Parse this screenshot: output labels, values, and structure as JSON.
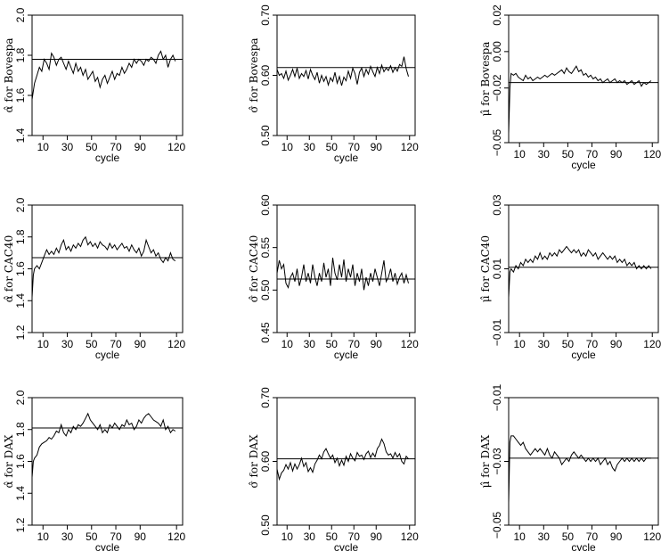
{
  "chart_data": [
    {
      "type": "line",
      "ylabel": "α̂ for Bovespa",
      "xlabel": "cycle",
      "xlim": [
        1,
        125
      ],
      "ylim": [
        1.4,
        2.0
      ],
      "xticks": [
        "10",
        "30",
        "50",
        "70",
        "90",
        "120"
      ],
      "yticks": [
        "1.4",
        "1.6",
        "1.8",
        "2.0"
      ],
      "hline": 1.78,
      "x": [
        1,
        3,
        5,
        7,
        9,
        11,
        13,
        15,
        17,
        19,
        21,
        23,
        25,
        27,
        29,
        31,
        33,
        35,
        37,
        39,
        41,
        43,
        45,
        47,
        49,
        51,
        53,
        55,
        57,
        59,
        61,
        63,
        65,
        67,
        69,
        71,
        73,
        75,
        77,
        79,
        81,
        83,
        85,
        87,
        89,
        91,
        93,
        95,
        97,
        99,
        101,
        103,
        105,
        107,
        109,
        111,
        113,
        115,
        117,
        119
      ],
      "values": [
        1.58,
        1.66,
        1.7,
        1.74,
        1.72,
        1.78,
        1.76,
        1.73,
        1.81,
        1.79,
        1.75,
        1.78,
        1.79,
        1.76,
        1.73,
        1.77,
        1.74,
        1.71,
        1.76,
        1.72,
        1.74,
        1.7,
        1.73,
        1.68,
        1.7,
        1.72,
        1.67,
        1.69,
        1.64,
        1.68,
        1.7,
        1.66,
        1.69,
        1.72,
        1.68,
        1.71,
        1.7,
        1.74,
        1.71,
        1.73,
        1.76,
        1.74,
        1.78,
        1.76,
        1.78,
        1.77,
        1.75,
        1.78,
        1.77,
        1.79,
        1.78,
        1.76,
        1.8,
        1.82,
        1.78,
        1.8,
        1.74,
        1.78,
        1.8,
        1.77
      ]
    },
    {
      "type": "line",
      "ylabel": "σ̂ for Bovespa",
      "xlabel": "cycle",
      "xlim": [
        1,
        125
      ],
      "ylim": [
        0.5,
        0.7
      ],
      "xticks": [
        "10",
        "30",
        "50",
        "70",
        "90",
        "120"
      ],
      "yticks": [
        "0.50",
        "0.60",
        "0.70"
      ],
      "hline": 0.613,
      "x": [
        1,
        3,
        5,
        7,
        9,
        11,
        13,
        15,
        17,
        19,
        21,
        23,
        25,
        27,
        29,
        31,
        33,
        35,
        37,
        39,
        41,
        43,
        45,
        47,
        49,
        51,
        53,
        55,
        57,
        59,
        61,
        63,
        65,
        67,
        69,
        71,
        73,
        75,
        77,
        79,
        81,
        83,
        85,
        87,
        89,
        91,
        93,
        95,
        97,
        99,
        101,
        103,
        105,
        107,
        109,
        111,
        113,
        115,
        117,
        119
      ],
      "values": [
        0.61,
        0.6,
        0.603,
        0.595,
        0.607,
        0.592,
        0.6,
        0.61,
        0.598,
        0.612,
        0.595,
        0.603,
        0.598,
        0.608,
        0.594,
        0.61,
        0.6,
        0.593,
        0.605,
        0.587,
        0.6,
        0.59,
        0.598,
        0.584,
        0.596,
        0.59,
        0.605,
        0.587,
        0.598,
        0.583,
        0.597,
        0.591,
        0.607,
        0.595,
        0.612,
        0.603,
        0.585,
        0.605,
        0.612,
        0.598,
        0.61,
        0.602,
        0.615,
        0.606,
        0.598,
        0.613,
        0.603,
        0.617,
        0.606,
        0.612,
        0.608,
        0.616,
        0.605,
        0.613,
        0.607,
        0.618,
        0.615,
        0.631,
        0.611,
        0.598
      ]
    },
    {
      "type": "line",
      "ylabel": "μ̂ for Bovespa",
      "xlabel": "cycle",
      "xlim": [
        1,
        125
      ],
      "ylim": [
        -0.05,
        0.02
      ],
      "xticks": [
        "10",
        "30",
        "50",
        "70",
        "90",
        "120"
      ],
      "yticks": [
        "−0.05",
        "−0.02",
        "0.00",
        "0.02"
      ],
      "hline": -0.017,
      "x": [
        1,
        2,
        3,
        5,
        7,
        9,
        11,
        13,
        15,
        17,
        19,
        21,
        23,
        25,
        27,
        29,
        31,
        33,
        35,
        37,
        39,
        41,
        43,
        45,
        47,
        49,
        51,
        53,
        55,
        57,
        59,
        61,
        63,
        65,
        67,
        69,
        71,
        73,
        75,
        77,
        79,
        81,
        83,
        85,
        87,
        89,
        91,
        93,
        95,
        97,
        99,
        101,
        103,
        105,
        107,
        109,
        111,
        113,
        115,
        117,
        119
      ],
      "values": [
        -0.045,
        -0.02,
        -0.012,
        -0.013,
        -0.012,
        -0.014,
        -0.015,
        -0.016,
        -0.013,
        -0.015,
        -0.014,
        -0.016,
        -0.015,
        -0.014,
        -0.015,
        -0.014,
        -0.013,
        -0.014,
        -0.013,
        -0.012,
        -0.013,
        -0.012,
        -0.011,
        -0.01,
        -0.012,
        -0.009,
        -0.011,
        -0.012,
        -0.01,
        -0.008,
        -0.011,
        -0.01,
        -0.013,
        -0.012,
        -0.014,
        -0.013,
        -0.015,
        -0.014,
        -0.016,
        -0.015,
        -0.017,
        -0.016,
        -0.015,
        -0.017,
        -0.016,
        -0.015,
        -0.017,
        -0.016,
        -0.017,
        -0.016,
        -0.018,
        -0.017,
        -0.016,
        -0.018,
        -0.017,
        -0.016,
        -0.019,
        -0.017,
        -0.018,
        -0.017,
        -0.016
      ]
    },
    {
      "type": "line",
      "ylabel": "α̂ for CAC40",
      "xlabel": "cycle",
      "xlim": [
        1,
        125
      ],
      "ylim": [
        1.2,
        2.0
      ],
      "xticks": [
        "10",
        "30",
        "50",
        "70",
        "90",
        "120"
      ],
      "yticks": [
        "1.2",
        "1.4",
        "1.6",
        "1.8",
        "2.0"
      ],
      "hline": 1.67,
      "x": [
        1,
        2,
        3,
        5,
        7,
        9,
        11,
        13,
        15,
        17,
        19,
        21,
        23,
        25,
        27,
        29,
        31,
        33,
        35,
        37,
        39,
        41,
        43,
        45,
        47,
        49,
        51,
        53,
        55,
        57,
        59,
        61,
        63,
        65,
        67,
        69,
        71,
        73,
        75,
        77,
        79,
        81,
        83,
        85,
        87,
        89,
        91,
        93,
        95,
        97,
        99,
        101,
        103,
        105,
        107,
        109,
        111,
        113,
        115,
        117,
        119
      ],
      "values": [
        1.42,
        1.56,
        1.6,
        1.62,
        1.6,
        1.64,
        1.68,
        1.72,
        1.69,
        1.71,
        1.69,
        1.73,
        1.7,
        1.75,
        1.78,
        1.72,
        1.74,
        1.71,
        1.75,
        1.73,
        1.76,
        1.74,
        1.78,
        1.8,
        1.75,
        1.77,
        1.74,
        1.76,
        1.73,
        1.77,
        1.75,
        1.74,
        1.72,
        1.76,
        1.73,
        1.75,
        1.72,
        1.74,
        1.76,
        1.73,
        1.74,
        1.71,
        1.75,
        1.72,
        1.7,
        1.73,
        1.68,
        1.71,
        1.78,
        1.74,
        1.7,
        1.72,
        1.68,
        1.7,
        1.66,
        1.64,
        1.67,
        1.65,
        1.7,
        1.66,
        1.65
      ]
    },
    {
      "type": "line",
      "ylabel": "σ̂ for CAC40",
      "xlabel": "cycle",
      "xlim": [
        1,
        125
      ],
      "ylim": [
        0.45,
        0.6
      ],
      "xticks": [
        "10",
        "30",
        "50",
        "70",
        "90",
        "120"
      ],
      "yticks": [
        "0.45",
        "0.50",
        "0.55",
        "0.60"
      ],
      "hline": 0.513,
      "x": [
        1,
        3,
        5,
        7,
        9,
        11,
        13,
        15,
        17,
        19,
        21,
        23,
        25,
        27,
        29,
        31,
        33,
        35,
        37,
        39,
        41,
        43,
        45,
        47,
        49,
        51,
        53,
        55,
        57,
        59,
        61,
        63,
        65,
        67,
        69,
        71,
        73,
        75,
        77,
        79,
        81,
        83,
        85,
        87,
        89,
        91,
        93,
        95,
        97,
        99,
        101,
        103,
        105,
        107,
        109,
        111,
        113,
        115,
        117,
        119
      ],
      "values": [
        0.52,
        0.535,
        0.525,
        0.53,
        0.508,
        0.503,
        0.515,
        0.52,
        0.51,
        0.525,
        0.505,
        0.515,
        0.53,
        0.51,
        0.52,
        0.508,
        0.53,
        0.515,
        0.505,
        0.52,
        0.51,
        0.532,
        0.515,
        0.525,
        0.505,
        0.538,
        0.52,
        0.512,
        0.53,
        0.515,
        0.536,
        0.51,
        0.525,
        0.515,
        0.53,
        0.505,
        0.52,
        0.51,
        0.525,
        0.5,
        0.515,
        0.505,
        0.52,
        0.51,
        0.525,
        0.515,
        0.505,
        0.52,
        0.535,
        0.51,
        0.515,
        0.525,
        0.51,
        0.52,
        0.507,
        0.515,
        0.52,
        0.508,
        0.518,
        0.508
      ]
    },
    {
      "type": "line",
      "ylabel": "μ̂ for CAC40",
      "xlabel": "cycle",
      "xlim": [
        1,
        125
      ],
      "ylim": [
        -0.01,
        0.03
      ],
      "xticks": [
        "10",
        "30",
        "50",
        "70",
        "90",
        "120"
      ],
      "yticks": [
        "−0.01",
        "0.01",
        "0.03"
      ],
      "hline": 0.0105,
      "x": [
        1,
        2,
        3,
        5,
        7,
        9,
        11,
        13,
        15,
        17,
        19,
        21,
        23,
        25,
        27,
        29,
        31,
        33,
        35,
        37,
        39,
        41,
        43,
        45,
        47,
        49,
        51,
        53,
        55,
        57,
        59,
        61,
        63,
        65,
        67,
        69,
        71,
        73,
        75,
        77,
        79,
        81,
        83,
        85,
        87,
        89,
        91,
        93,
        95,
        97,
        99,
        101,
        103,
        105,
        107,
        109,
        111,
        113,
        115,
        117,
        119
      ],
      "values": [
        0.001,
        0.009,
        0.01,
        0.009,
        0.011,
        0.01,
        0.012,
        0.011,
        0.013,
        0.012,
        0.013,
        0.012,
        0.014,
        0.013,
        0.015,
        0.013,
        0.014,
        0.013,
        0.015,
        0.014,
        0.015,
        0.014,
        0.016,
        0.015,
        0.016,
        0.017,
        0.016,
        0.015,
        0.016,
        0.015,
        0.016,
        0.014,
        0.015,
        0.014,
        0.016,
        0.015,
        0.014,
        0.015,
        0.013,
        0.014,
        0.015,
        0.014,
        0.013,
        0.014,
        0.013,
        0.014,
        0.012,
        0.013,
        0.012,
        0.013,
        0.011,
        0.012,
        0.011,
        0.012,
        0.01,
        0.011,
        0.01,
        0.011,
        0.01,
        0.011,
        0.01
      ]
    },
    {
      "type": "line",
      "ylabel": "α̂ for DAX",
      "xlabel": "cycle",
      "xlim": [
        1,
        125
      ],
      "ylim": [
        1.2,
        2.0
      ],
      "xticks": [
        "10",
        "30",
        "50",
        "70",
        "90",
        "120"
      ],
      "yticks": [
        "1.2",
        "1.4",
        "1.6",
        "1.8",
        "2.0"
      ],
      "hline": 1.81,
      "x": [
        1,
        2,
        3,
        5,
        7,
        9,
        11,
        13,
        15,
        17,
        19,
        21,
        23,
        25,
        27,
        29,
        31,
        33,
        35,
        37,
        39,
        41,
        43,
        45,
        47,
        49,
        51,
        53,
        55,
        57,
        59,
        61,
        63,
        65,
        67,
        69,
        71,
        73,
        75,
        77,
        79,
        81,
        83,
        85,
        87,
        89,
        91,
        93,
        95,
        97,
        99,
        101,
        103,
        105,
        107,
        109,
        111,
        113,
        115,
        117,
        119
      ],
      "values": [
        1.5,
        1.6,
        1.62,
        1.64,
        1.69,
        1.71,
        1.72,
        1.73,
        1.75,
        1.74,
        1.76,
        1.79,
        1.78,
        1.83,
        1.78,
        1.76,
        1.8,
        1.78,
        1.82,
        1.8,
        1.83,
        1.82,
        1.84,
        1.87,
        1.9,
        1.86,
        1.84,
        1.82,
        1.8,
        1.83,
        1.78,
        1.8,
        1.78,
        1.83,
        1.81,
        1.84,
        1.82,
        1.8,
        1.83,
        1.82,
        1.86,
        1.83,
        1.84,
        1.8,
        1.82,
        1.86,
        1.84,
        1.87,
        1.89,
        1.9,
        1.88,
        1.86,
        1.85,
        1.84,
        1.82,
        1.86,
        1.8,
        1.82,
        1.78,
        1.8,
        1.79
      ]
    },
    {
      "type": "line",
      "ylabel": "σ̂ for DAX",
      "xlabel": "cycle",
      "xlim": [
        1,
        125
      ],
      "ylim": [
        0.5,
        0.7
      ],
      "xticks": [
        "10",
        "30",
        "50",
        "70",
        "90",
        "120"
      ],
      "yticks": [
        "0.50",
        "0.60",
        "0.70"
      ],
      "hline": 0.604,
      "x": [
        1,
        3,
        5,
        7,
        9,
        11,
        13,
        15,
        17,
        19,
        21,
        23,
        25,
        27,
        29,
        31,
        33,
        35,
        37,
        39,
        41,
        43,
        45,
        47,
        49,
        51,
        53,
        55,
        57,
        59,
        61,
        63,
        65,
        67,
        69,
        71,
        73,
        75,
        77,
        79,
        81,
        83,
        85,
        87,
        89,
        91,
        93,
        95,
        97,
        99,
        101,
        103,
        105,
        107,
        109,
        111,
        113,
        115,
        117,
        119
      ],
      "values": [
        0.588,
        0.572,
        0.582,
        0.586,
        0.595,
        0.588,
        0.598,
        0.585,
        0.596,
        0.588,
        0.595,
        0.605,
        0.592,
        0.598,
        0.584,
        0.59,
        0.583,
        0.596,
        0.602,
        0.61,
        0.604,
        0.615,
        0.62,
        0.612,
        0.605,
        0.61,
        0.598,
        0.605,
        0.593,
        0.602,
        0.594,
        0.608,
        0.6,
        0.612,
        0.605,
        0.601,
        0.614,
        0.608,
        0.61,
        0.603,
        0.612,
        0.616,
        0.606,
        0.613,
        0.607,
        0.62,
        0.625,
        0.635,
        0.628,
        0.615,
        0.61,
        0.612,
        0.605,
        0.614,
        0.607,
        0.612,
        0.6,
        0.596,
        0.608,
        0.604
      ]
    },
    {
      "type": "line",
      "ylabel": "μ̂ for DAX",
      "xlabel": "cycle",
      "xlim": [
        1,
        125
      ],
      "ylim": [
        -0.05,
        -0.01
      ],
      "xticks": [
        "10",
        "30",
        "50",
        "70",
        "90",
        "120"
      ],
      "yticks": [
        "−0.05",
        "−0.03",
        "−0.01"
      ],
      "hline": -0.029,
      "x": [
        1,
        2,
        3,
        5,
        7,
        9,
        11,
        13,
        15,
        17,
        19,
        21,
        23,
        25,
        27,
        29,
        31,
        33,
        35,
        37,
        39,
        41,
        43,
        45,
        47,
        49,
        51,
        53,
        55,
        57,
        59,
        61,
        63,
        65,
        67,
        69,
        71,
        73,
        75,
        77,
        79,
        81,
        83,
        85,
        87,
        89,
        91,
        93,
        95,
        97,
        99,
        101,
        103,
        105,
        107,
        109,
        111,
        113,
        115,
        117,
        119
      ],
      "values": [
        -0.043,
        -0.024,
        -0.022,
        -0.022,
        -0.023,
        -0.024,
        -0.025,
        -0.024,
        -0.026,
        -0.027,
        -0.028,
        -0.027,
        -0.026,
        -0.027,
        -0.026,
        -0.027,
        -0.028,
        -0.026,
        -0.028,
        -0.029,
        -0.027,
        -0.028,
        -0.029,
        -0.031,
        -0.03,
        -0.029,
        -0.03,
        -0.028,
        -0.027,
        -0.028,
        -0.029,
        -0.028,
        -0.029,
        -0.03,
        -0.029,
        -0.03,
        -0.029,
        -0.03,
        -0.029,
        -0.031,
        -0.03,
        -0.029,
        -0.031,
        -0.03,
        -0.032,
        -0.033,
        -0.031,
        -0.03,
        -0.029,
        -0.03,
        -0.029,
        -0.03,
        -0.029,
        -0.03,
        -0.029,
        -0.03,
        -0.029,
        -0.03,
        -0.029,
        -0.029,
        -0.029
      ]
    }
  ]
}
